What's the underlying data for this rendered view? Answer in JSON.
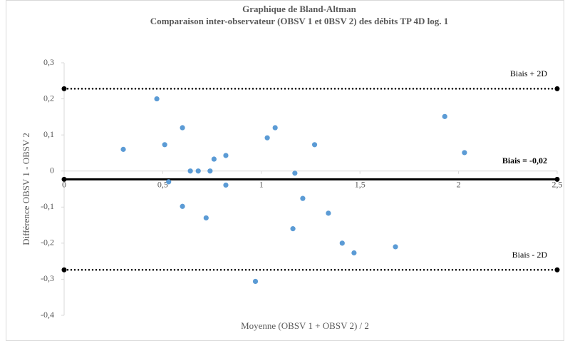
{
  "chart_data": {
    "type": "scatter",
    "title": "Graphique de Bland-Altman",
    "subtitle": "Comparaison inter-observateur (OBSV 1 et 0BSV 2) des débits TP 4D log. 1",
    "x_label": "Moyenne (OBSV 1 + OBSV 2) / 2",
    "y_label": "Différence OBSV 1 - OBSV 2",
    "x": [
      0.3,
      0.47,
      0.51,
      0.53,
      0.6,
      0.6,
      0.64,
      0.68,
      0.72,
      0.74,
      0.76,
      0.82,
      0.82,
      0.97,
      1.03,
      1.07,
      1.16,
      1.17,
      1.21,
      1.27,
      1.34,
      1.41,
      1.47,
      1.68,
      1.93,
      2.03
    ],
    "values": [
      0.06,
      0.2,
      0.073,
      -0.03,
      0.12,
      -0.098,
      0.0,
      0.0,
      -0.13,
      0.0,
      0.033,
      -0.039,
      0.043,
      -0.306,
      0.092,
      0.12,
      -0.16,
      -0.006,
      -0.076,
      0.073,
      -0.117,
      -0.2,
      -0.227,
      -0.21,
      0.151,
      0.051
    ],
    "color": "#5b9bd5",
    "reference_lines": [
      {
        "label": "Biais + 2D",
        "value": 0.228,
        "style": "dotted"
      },
      {
        "label": "Biais = -0,02",
        "value": -0.023,
        "style": "solid"
      },
      {
        "label": "Biais - 2D",
        "value": -0.274,
        "style": "dotted"
      }
    ],
    "xlim": [
      0,
      2.5
    ],
    "xticks": [
      0,
      {
        "value": 0.5,
        "label": "0,5"
      },
      1,
      {
        "value": 1.5,
        "label": "1,5"
      },
      2,
      {
        "value": 2.5,
        "label": "2,5"
      }
    ],
    "ylim": [
      -0.4,
      0.3
    ],
    "yticks": [
      {
        "value": -0.4,
        "label": "-0,4"
      },
      {
        "value": -0.3,
        "label": "-0,3"
      },
      {
        "value": -0.2,
        "label": "-0,2"
      },
      {
        "value": -0.1,
        "label": "-0,1"
      },
      0,
      {
        "value": 0.1,
        "label": "0,1"
      },
      {
        "value": 0.2,
        "label": "0,2"
      },
      {
        "value": 0.3,
        "label": "0,3"
      }
    ]
  }
}
